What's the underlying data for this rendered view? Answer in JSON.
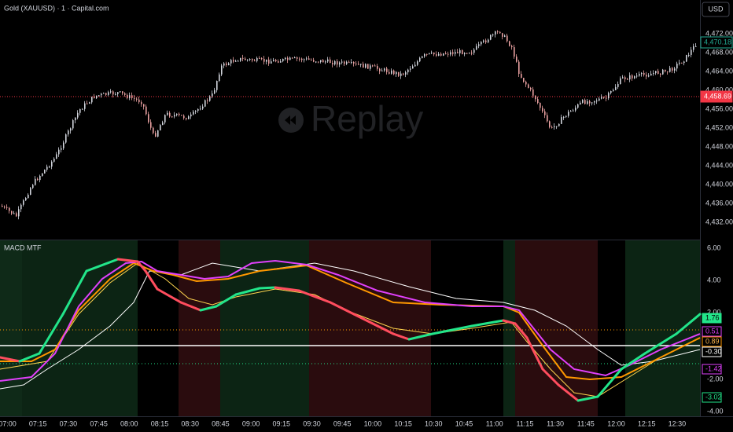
{
  "header": {
    "symbol": "Gold (XAUUSD) · 1 · Capital.com",
    "currency": "USD"
  },
  "watermark": "Replay",
  "price_axis": {
    "ticks": [
      "4,472.00",
      "4,468.00",
      "4,464.00",
      "4,460.00",
      "4,456.00",
      "4,452.00",
      "4,448.00",
      "4,444.00",
      "4,440.00",
      "4,436.00",
      "4,432.00"
    ],
    "tags": [
      "4,470.18",
      "4,458.69"
    ]
  },
  "indicator": {
    "name": "MACD MTF",
    "ticks": [
      "6.00",
      "4.00",
      "2.00",
      "-2.00",
      "-4.00"
    ],
    "tags": [
      "1.76",
      "0.51",
      "0.89",
      "-0.30",
      "-1.42",
      "-3.02"
    ]
  },
  "time_axis": {
    "labels": [
      "07:00",
      "07:15",
      "07:30",
      "07:45",
      "08:00",
      "08:15",
      "08:30",
      "08:45",
      "09:00",
      "09:15",
      "09:30",
      "09:45",
      "10:00",
      "10:15",
      "10:30",
      "10:45",
      "11:00",
      "11:15",
      "11:30",
      "11:45",
      "12:00",
      "12:15",
      "12:30"
    ]
  }
}
